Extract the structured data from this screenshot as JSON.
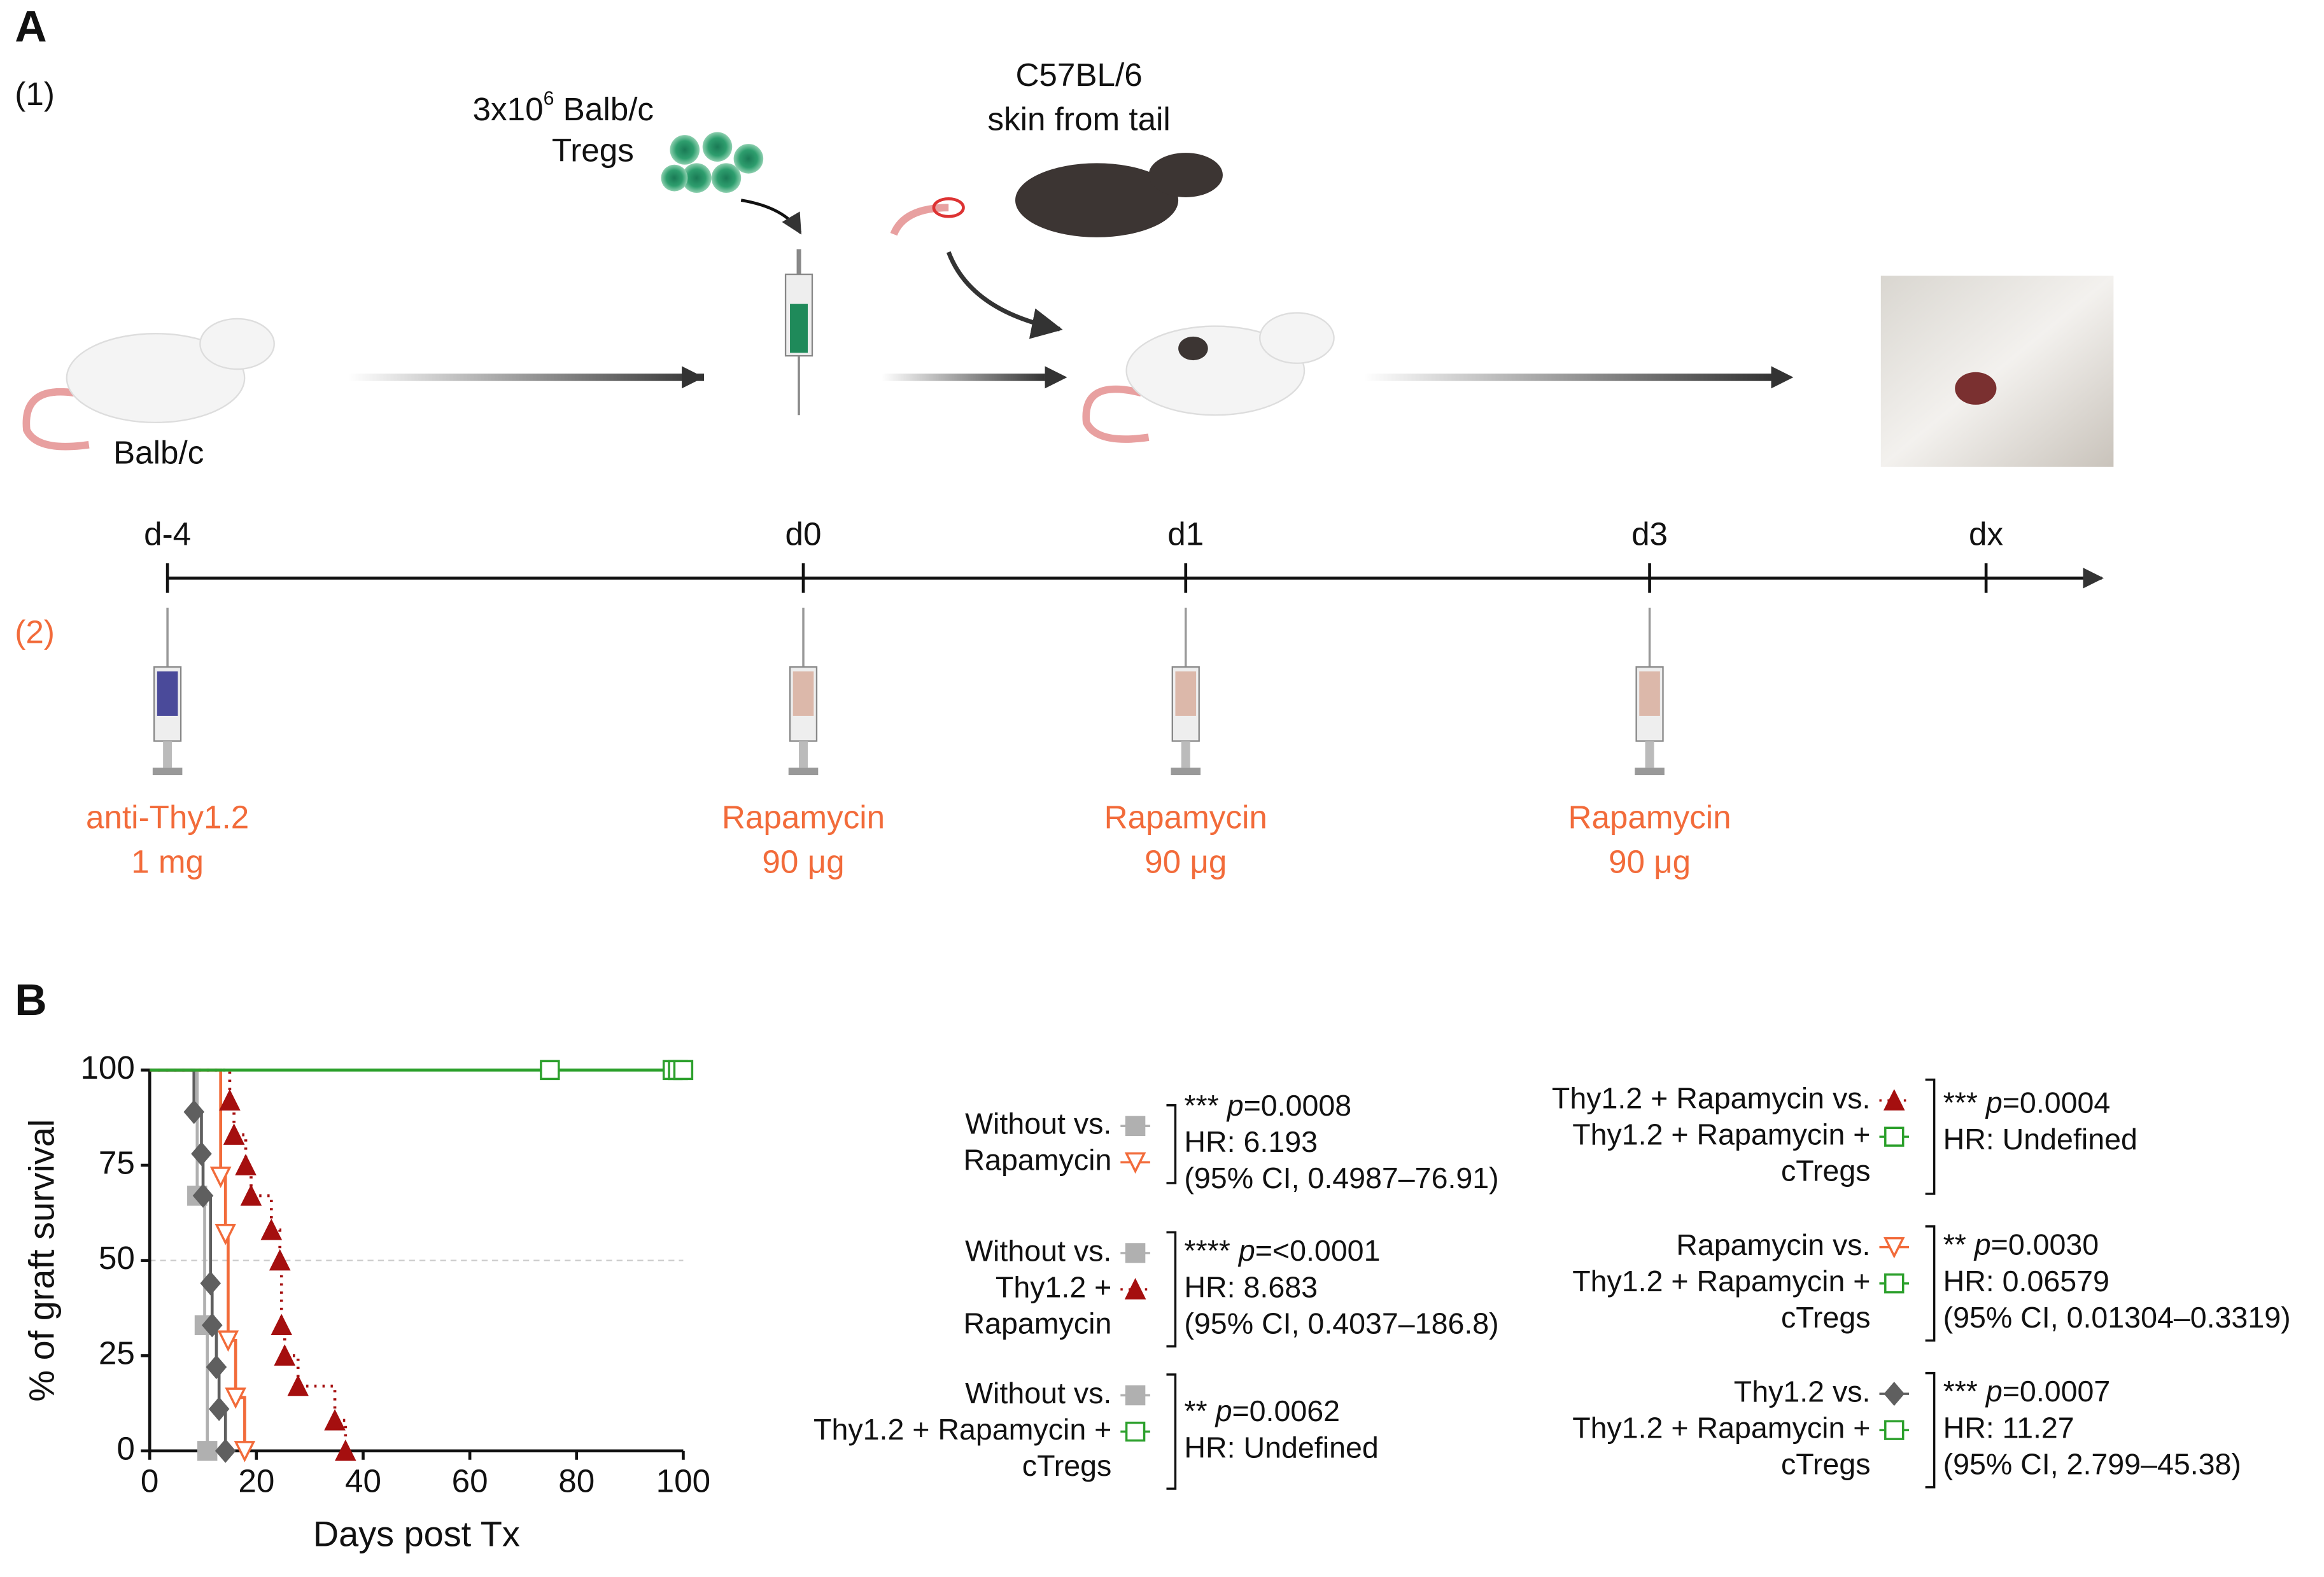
{
  "panel_a": {
    "label": "A",
    "step1": "(1)",
    "tregs_line1": [
      "3x10",
      "6",
      " Balb/c"
    ],
    "tregs_line2": "Tregs",
    "donor_line1": "C57BL/6",
    "donor_line2": "skin from tail",
    "recipient": "Balb/c",
    "step2": "(2)",
    "days": [
      "d-4",
      "d0",
      "d1",
      "d3",
      "dx"
    ],
    "treatments": [
      {
        "name": "anti-Thy1.2",
        "dose": "1 mg"
      },
      {
        "name": "Rapamycin",
        "dose": "90 μg"
      },
      {
        "name": "Rapamycin",
        "dose": "90 μg"
      },
      {
        "name": "Rapamycin",
        "dose": "90 μg"
      }
    ]
  },
  "chart_data": {
    "type": "line",
    "label": "B",
    "xlabel": "Days post Tx",
    "ylabel": "% of  graft survival",
    "xlim": [
      0,
      100
    ],
    "xticks": [
      0,
      20,
      40,
      60,
      80,
      100
    ],
    "ylim": [
      0,
      100
    ],
    "yticks": [
      0,
      25,
      50,
      75,
      100
    ],
    "hline": 50,
    "series": [
      {
        "color": "#b0b0b0",
        "marker": "square",
        "x": [
          8.9,
          10.3,
          10.8
        ],
        "values": [
          67,
          33,
          0
        ]
      },
      {
        "color": "#f26b3a",
        "marker": "triangle-down-open",
        "x": [
          13.3,
          14.2,
          14.7,
          16.1,
          17.8
        ],
        "values": [
          72,
          57,
          29,
          14,
          0
        ]
      },
      {
        "color": "#5f5f5f",
        "marker": "diamond",
        "x": [
          8.3,
          9.7,
          10,
          11.4,
          11.7,
          12.5,
          13,
          14.2
        ],
        "values": [
          89,
          78,
          67,
          44,
          33,
          22,
          11,
          0
        ]
      },
      {
        "color": "#a50f0f",
        "marker": "triangle",
        "line_style": "dotted",
        "x": [
          15,
          15.8,
          18,
          19,
          22.8,
          24.4,
          24.7,
          25.3,
          27.8,
          34.7,
          36.7
        ],
        "values": [
          92,
          83,
          75,
          67,
          58,
          50,
          33,
          25,
          17,
          8,
          0
        ]
      },
      {
        "color": "#2ca02c",
        "marker": "square-open",
        "x": [
          75,
          98,
          99,
          100
        ],
        "values": [
          100,
          100,
          100,
          100
        ]
      }
    ],
    "p_label": "p",
    "comparisons": [
      {
        "group1": [
          "Without vs."
        ],
        "group2": [
          "Rapamycin"
        ],
        "sig": "***",
        "p": "=0.0008",
        "stats": [
          "HR: 6.193",
          "(95% CI, 0.4987–76.91)"
        ]
      },
      {
        "group1": [
          "Without vs."
        ],
        "group2": [
          "Thy1.2 +",
          "Rapamycin"
        ],
        "sig": "****",
        "p": "=<0.0001",
        "stats": [
          "HR: 8.683",
          "(95% CI, 0.4037–186.8)"
        ]
      },
      {
        "group1": [
          "Without vs."
        ],
        "group2": [
          "Thy1.2 + Rapamycin +",
          "cTregs"
        ],
        "sig": "**",
        "p": "=0.0062",
        "stats": [
          "HR: Undefined"
        ]
      },
      {
        "group1": [
          "Thy1.2 + Rapamycin vs."
        ],
        "group2": [
          "Thy1.2 + Rapamycin +",
          "cTregs"
        ],
        "sig": "***",
        "p": "=0.0004",
        "stats": [
          "HR: Undefined"
        ]
      },
      {
        "group1": [
          "Rapamycin vs."
        ],
        "group2": [
          "Thy1.2 + Rapamycin +",
          "cTregs"
        ],
        "sig": "**",
        "p": "=0.0030",
        "stats": [
          "HR: 0.06579",
          "(95% CI, 0.01304–0.3319)"
        ]
      },
      {
        "group1": [
          "Thy1.2 vs."
        ],
        "group2": [
          "Thy1.2 + Rapamycin +",
          "cTregs"
        ],
        "sig": "***",
        "p": "=0.0007",
        "stats": [
          "HR: 11.27",
          "(95% CI, 2.799–45.38)"
        ]
      }
    ]
  }
}
